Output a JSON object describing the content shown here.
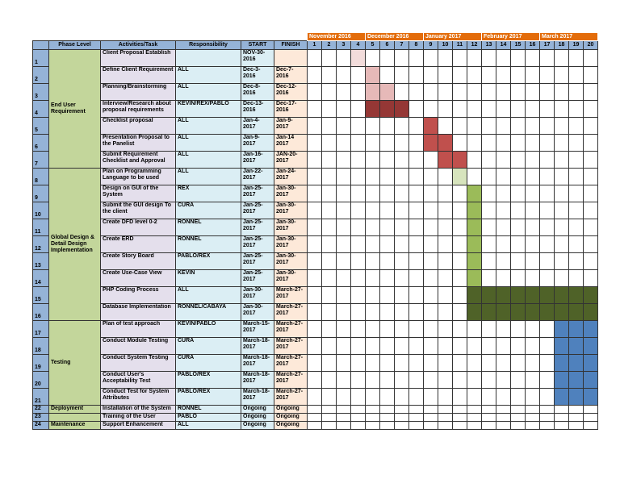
{
  "months": [
    {
      "label": "November 2016",
      "span": 4,
      "first": 1
    },
    {
      "label": "December 2016",
      "span": 4,
      "first": 5
    },
    {
      "label": "January 2017",
      "span": 4,
      "first": 9
    },
    {
      "label": "February 2017",
      "span": 4,
      "first": 13
    },
    {
      "label": "March 2017",
      "span": 4,
      "first": 17
    }
  ],
  "headers": {
    "num": "",
    "phase": "Phase Level",
    "activity": "Activities/Task",
    "responsibility": "Responsibility",
    "start": "START",
    "finish": "FINISH"
  },
  "weeks": [
    "1",
    "2",
    "3",
    "4",
    "5",
    "6",
    "7",
    "8",
    "9",
    "10",
    "11",
    "12",
    "13",
    "14",
    "15",
    "16",
    "17",
    "18",
    "19",
    "20"
  ],
  "phases": [
    {
      "label": "End User Requirement",
      "first_row": 0,
      "rows": 7
    },
    {
      "label": "Global Design & Detail Design Implementation",
      "first_row": 7,
      "rows": 9
    },
    {
      "label": "Testing",
      "first_row": 16,
      "rows": 5
    },
    {
      "label": "Deployment",
      "first_row": 21,
      "rows": 1
    },
    {
      "label": "",
      "first_row": 22,
      "rows": 1
    },
    {
      "label": "Maintenance",
      "first_row": 23,
      "rows": 1
    }
  ],
  "colors": {
    "c1": "#f2dcdb",
    "c2": "#e6b9b8",
    "c3": "#953735",
    "c4": "#c0504d",
    "c5": "#d7e4bd",
    "c6": "#9bbb59",
    "c7": "#4f6228",
    "c8": "#4f81bd"
  },
  "rows": [
    {
      "num": "1",
      "activity": "Client Proposal Establish",
      "responsibility": "",
      "start": "NOV-30-2016",
      "finish": "",
      "bar": {
        "from": 4,
        "to": 4,
        "color": "c1"
      },
      "h": 21
    },
    {
      "num": "2",
      "activity": "Define Client Requirement",
      "responsibility": "ALL",
      "start": "Dec-3-2016",
      "finish": "Dec-7-2016",
      "bar": {
        "from": 5,
        "to": 5,
        "color": "c2"
      },
      "h": 21
    },
    {
      "num": "3",
      "activity": "Planning/Brainstorming",
      "responsibility": "ALL",
      "start": "Dec-8-2016",
      "finish": "Dec-12-2016",
      "bar": {
        "from": 5,
        "to": 6,
        "color": "c2"
      },
      "h": 21
    },
    {
      "num": "4",
      "activity": "Interview/Research about proposal requirements",
      "responsibility": "KEVIN/REX/PABLO",
      "start": "Dec-13-2016",
      "finish": "Dec-17-2016",
      "bar": {
        "from": 5,
        "to": 7,
        "color": "c3"
      },
      "h": 21
    },
    {
      "num": "5",
      "activity": "Checklist proposal",
      "responsibility": "ALL",
      "start": "Jan-4-2017",
      "finish": "Jan-9-2017",
      "bar": {
        "from": 9,
        "to": 9,
        "color": "c4"
      },
      "h": 21
    },
    {
      "num": "6",
      "activity": "Presentation Proposal to the Panelist",
      "responsibility": "ALL",
      "start": "Jan-9-2017",
      "finish": "Jan-14 2017",
      "bar": {
        "from": 9,
        "to": 10,
        "color": "c4"
      },
      "h": 21
    },
    {
      "num": "7",
      "activity": "Submit Requirement Checklist and Approval",
      "responsibility": "ALL",
      "start": "Jan-16-2017",
      "finish": "JAN-20-2017",
      "bar": {
        "from": 10,
        "to": 11,
        "color": "c4"
      },
      "h": 21
    },
    {
      "num": "8",
      "activity": "Plan on Programming Language to be used",
      "responsibility": "ALL",
      "start": "Jan-22-2017",
      "finish": "Jan-24-2017",
      "bar": {
        "from": 11,
        "to": 11,
        "color": "c5"
      },
      "h": 21
    },
    {
      "num": "9",
      "activity": "Design on GUI of the System",
      "responsibility": "REX",
      "start": "Jan-25-2017",
      "finish": "Jan-30-2017",
      "bar": {
        "from": 12,
        "to": 12,
        "color": "c6"
      },
      "h": 21
    },
    {
      "num": "10",
      "activity": "Submit the GUI design To the client",
      "responsibility": "CURA",
      "start": "Jan-25-2017",
      "finish": "Jan-30-2017",
      "bar": {
        "from": 12,
        "to": 12,
        "color": "c6"
      },
      "h": 21
    },
    {
      "num": "11",
      "activity": "Create DFD level 0-2",
      "responsibility": "RONNEL",
      "start": "Jan-25-2017",
      "finish": "Jan-30-2017",
      "bar": {
        "from": 12,
        "to": 12,
        "color": "c6"
      },
      "h": 21
    },
    {
      "num": "12",
      "activity": "Create ERD",
      "responsibility": "RONNEL",
      "start": "Jan-25-2017",
      "finish": "Jan-30-2017",
      "bar": {
        "from": 12,
        "to": 12,
        "color": "c6"
      },
      "h": 21
    },
    {
      "num": "13",
      "activity": "Create Story Board",
      "responsibility": "PABLO/REX",
      "start": "Jan-25-2017",
      "finish": "Jan-30-2017",
      "bar": {
        "from": 12,
        "to": 12,
        "color": "c6"
      },
      "h": 21
    },
    {
      "num": "14",
      "activity": "Create Use-Case View",
      "responsibility": "KEVIN",
      "start": "Jan-25-2017",
      "finish": "Jan-30-2017",
      "bar": {
        "from": 12,
        "to": 12,
        "color": "c6"
      },
      "h": 21
    },
    {
      "num": "15",
      "activity": "PHP Coding Process",
      "responsibility": "ALL",
      "start": "Jan-30-2017",
      "finish": "March-27-2017",
      "bar": {
        "from": 12,
        "to": 20,
        "color": "c7"
      },
      "h": 21
    },
    {
      "num": "16",
      "activity": "Database Implementation",
      "responsibility": "RONNEL/CABAYA",
      "start": "Jan-30-2017",
      "finish": "March-27-2017",
      "bar": {
        "from": 12,
        "to": 20,
        "color": "c7"
      },
      "h": 21
    },
    {
      "num": "17",
      "activity": "Plan of test approach",
      "responsibility": "KEVIN/PABLO",
      "start": "March-15-2017",
      "finish": "March-27-2017",
      "bar": {
        "from": 18,
        "to": 20,
        "color": "c8"
      },
      "h": 21
    },
    {
      "num": "18",
      "activity": "Conduct Module Testing",
      "responsibility": "CURA",
      "start": "March-18-2017",
      "finish": "March-27-2017",
      "bar": {
        "from": 18,
        "to": 20,
        "color": "c8"
      },
      "h": 21
    },
    {
      "num": "19",
      "activity": "Conduct System Testing",
      "responsibility": "CURA",
      "start": "March-18-2017",
      "finish": "March-27-2017",
      "bar": {
        "from": 18,
        "to": 20,
        "color": "c8"
      },
      "h": 21
    },
    {
      "num": "20",
      "activity": "Conduct User's Acceptability Test",
      "responsibility": "PABLO/REX",
      "start": "March-18-2017",
      "finish": "March-27-2017",
      "bar": {
        "from": 18,
        "to": 20,
        "color": "c8"
      },
      "h": 21
    },
    {
      "num": "21",
      "activity": "Conduct Test for System Attributes",
      "responsibility": "PABLO/REX",
      "start": "March-18-2017",
      "finish": "March-27-2017",
      "bar": {
        "from": 18,
        "to": 20,
        "color": "c8"
      },
      "h": 21
    },
    {
      "num": "22",
      "activity": "Installation of the System",
      "responsibility": "RONNEL",
      "start": "Ongoing",
      "finish": "Ongoing",
      "bar": null,
      "h": 10
    },
    {
      "num": "23",
      "activity": "Training of the User",
      "responsibility": "PABLO",
      "start": "Ongoing",
      "finish": "Ongoing",
      "bar": null,
      "h": 10
    },
    {
      "num": "24",
      "activity": "Support Enhancement",
      "responsibility": "ALL",
      "start": "Ongoing",
      "finish": "Ongoing",
      "bar": null,
      "h": 10
    }
  ]
}
